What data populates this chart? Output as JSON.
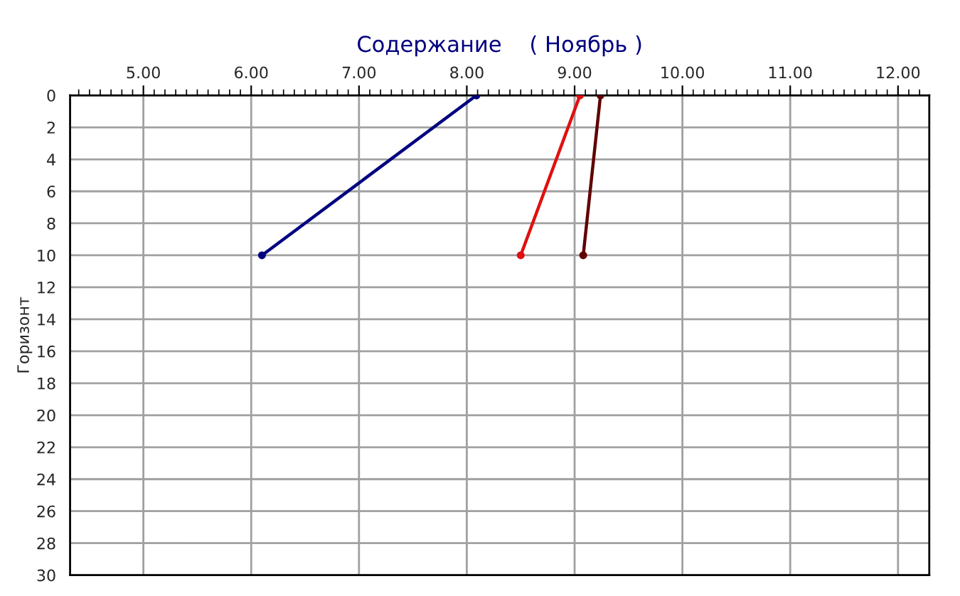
{
  "chart_data": {
    "type": "line",
    "title": "Содержание    ( Ноябрь )",
    "ylabel": "Горизонт",
    "xlim": [
      4.32,
      12.29
    ],
    "xticks": [
      {
        "value": 5,
        "label": "5.00"
      },
      {
        "value": 6,
        "label": "6.00"
      },
      {
        "value": 7,
        "label": "7.00"
      },
      {
        "value": 8,
        "label": "8.00"
      },
      {
        "value": 9,
        "label": "9.00"
      },
      {
        "value": 10,
        "label": "10.00"
      },
      {
        "value": 11,
        "label": "11.00"
      },
      {
        "value": 12,
        "label": "12.00"
      }
    ],
    "ylim": [
      30,
      0
    ],
    "yticks": [
      0,
      2,
      4,
      6,
      8,
      10,
      12,
      14,
      16,
      18,
      20,
      22,
      24,
      26,
      28,
      30
    ],
    "grid": true,
    "marker": "circle",
    "line_style": "solid",
    "series": [
      {
        "color": "#000080",
        "x": [
          8.09,
          6.1
        ],
        "values": [
          0,
          10
        ]
      },
      {
        "color": "#e01010",
        "x": [
          9.05,
          8.5
        ],
        "values": [
          0,
          10
        ]
      },
      {
        "color": "#600000",
        "x": [
          9.24,
          9.08
        ],
        "values": [
          0,
          10
        ]
      }
    ]
  }
}
